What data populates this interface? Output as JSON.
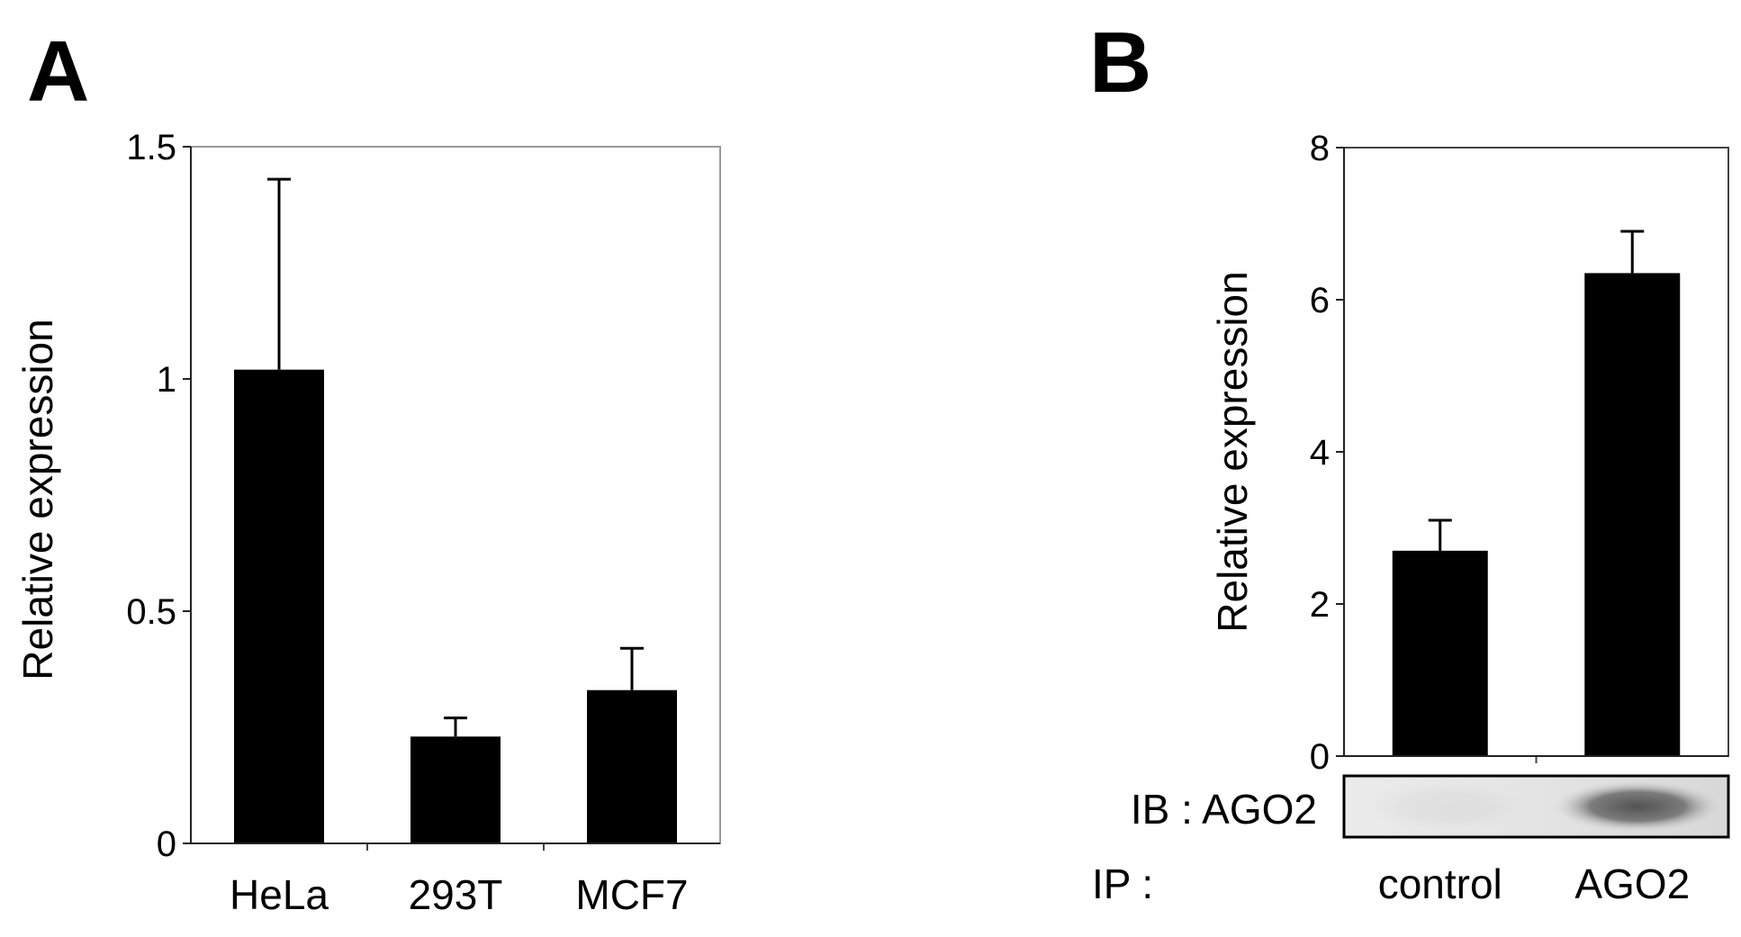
{
  "panels": {
    "a_label": "A",
    "b_label": "B"
  },
  "chart_data": [
    {
      "type": "bar",
      "panel": "A",
      "categories": [
        "HeLa",
        "293T",
        "MCF7"
      ],
      "values": [
        1.02,
        0.23,
        0.33
      ],
      "error": [
        0.41,
        0.04,
        0.09
      ],
      "ylabel": "Relative expression",
      "xlabel": "",
      "ylim": [
        0,
        1.5
      ],
      "yticks": [
        0,
        0.5,
        1,
        1.5
      ],
      "ytick_labels": [
        "0",
        "0.5",
        "1",
        "1.5"
      ],
      "grid": false,
      "bar_color": "#000000"
    },
    {
      "type": "bar",
      "panel": "B",
      "categories": [
        "control",
        "AGO2"
      ],
      "values": [
        2.7,
        6.35
      ],
      "error": [
        0.4,
        0.55
      ],
      "ylabel": "Relative expression",
      "xlabel": "",
      "ylim": [
        0,
        8
      ],
      "yticks": [
        0,
        2,
        4,
        6,
        8
      ],
      "ytick_labels": [
        "0",
        "2",
        "4",
        "6",
        "8"
      ],
      "grid": false,
      "bar_color": "#000000",
      "blot": {
        "ib_label": "IB : AGO2",
        "ip_label": "IP :",
        "band_intensity": [
          0.05,
          0.85
        ]
      }
    }
  ]
}
